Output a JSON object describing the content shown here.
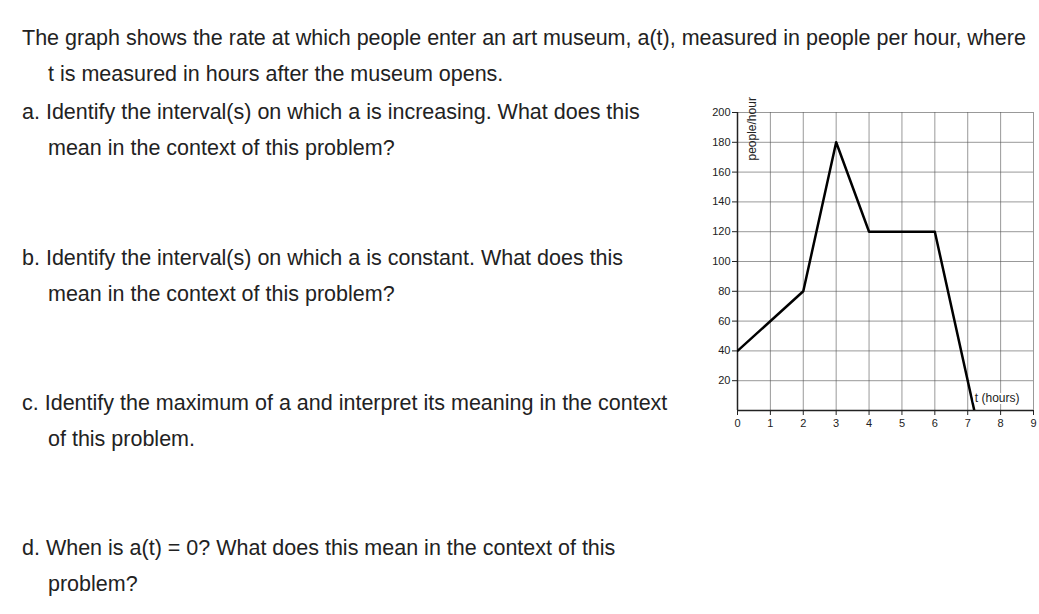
{
  "header": {
    "text": "The graph shows the rate at which people enter an art museum, a(t), measured in people per hour, where t is measured in hours after the museum opens."
  },
  "questions": [
    {
      "label": "a.",
      "text": "Identify the interval(s) on which a is increasing. What does this mean in the context of this problem?"
    },
    {
      "label": "b.",
      "text": "Identify the interval(s) on which a is constant. What does this mean in the context of this problem?"
    },
    {
      "label": "c.",
      "text": "Identify the maximum of a and interpret its meaning in the context of this problem."
    },
    {
      "label": "d.",
      "text": "When is a(t) = 0? What does this mean in the context of this problem?"
    }
  ],
  "chart_data": {
    "type": "line",
    "x": [
      0,
      2,
      3,
      4,
      6,
      7.2
    ],
    "values": [
      40,
      80,
      180,
      120,
      120,
      0
    ],
    "color": "#000000",
    "x_label": "t (hours)",
    "y_label": "people/hour",
    "xlim": [
      0,
      9
    ],
    "ylim": [
      0,
      200
    ],
    "xticks": [
      0,
      1,
      2,
      3,
      4,
      5,
      6,
      7,
      8,
      9
    ],
    "yticks": [
      20,
      40,
      60,
      80,
      100,
      120,
      140,
      160,
      180,
      200
    ],
    "grid": true
  }
}
